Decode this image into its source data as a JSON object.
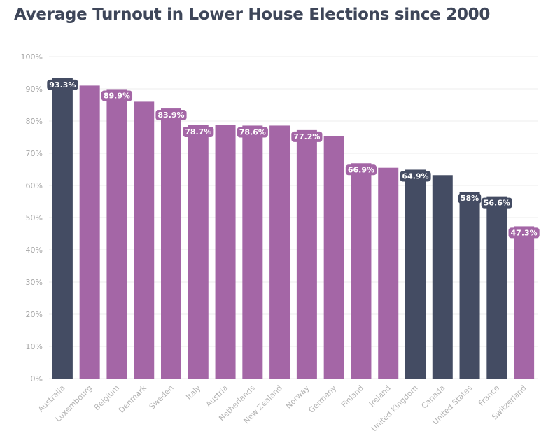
{
  "chart_data": {
    "type": "bar",
    "title": "Average Turnout in Lower House Elections since 2000",
    "categories": [
      "Australia",
      "Luxembourg",
      "Belgium",
      "Denmark",
      "Sweden",
      "Italy",
      "Austria",
      "Netherlands",
      "New Zealand",
      "Norway",
      "Germany",
      "Finland",
      "Ireland",
      "United Kingdom",
      "Canada",
      "United States",
      "France",
      "Switzerland"
    ],
    "values": [
      93.3,
      91.0,
      89.9,
      86.0,
      83.9,
      78.7,
      78.7,
      78.6,
      78.6,
      77.2,
      75.4,
      66.9,
      65.5,
      64.9,
      63.2,
      58.0,
      56.6,
      47.3
    ],
    "data_labels": [
      "93.3%",
      "",
      "89.9%",
      "",
      "83.9%",
      "78.7%",
      "",
      "78.6%",
      "",
      "77.2%",
      "",
      "66.9%",
      "",
      "64.9%",
      "",
      "58%",
      "56.6%",
      "47.3%"
    ],
    "highlight": [
      true,
      false,
      false,
      false,
      false,
      false,
      false,
      false,
      false,
      false,
      false,
      false,
      false,
      true,
      true,
      true,
      true,
      false
    ],
    "ylim": [
      0,
      100
    ],
    "yticks": [
      0,
      10,
      20,
      30,
      40,
      50,
      60,
      70,
      80,
      90,
      100
    ],
    "ytick_labels": [
      "0%",
      "10%",
      "20%",
      "30%",
      "40%",
      "50%",
      "60%",
      "70%",
      "80%",
      "90%",
      "100%"
    ],
    "xlabel": "",
    "ylabel": "",
    "grid": true,
    "colors": {
      "default": "#a466a6",
      "highlight": "#444c63",
      "title": "#3e4659",
      "grid": "#ececec"
    }
  }
}
